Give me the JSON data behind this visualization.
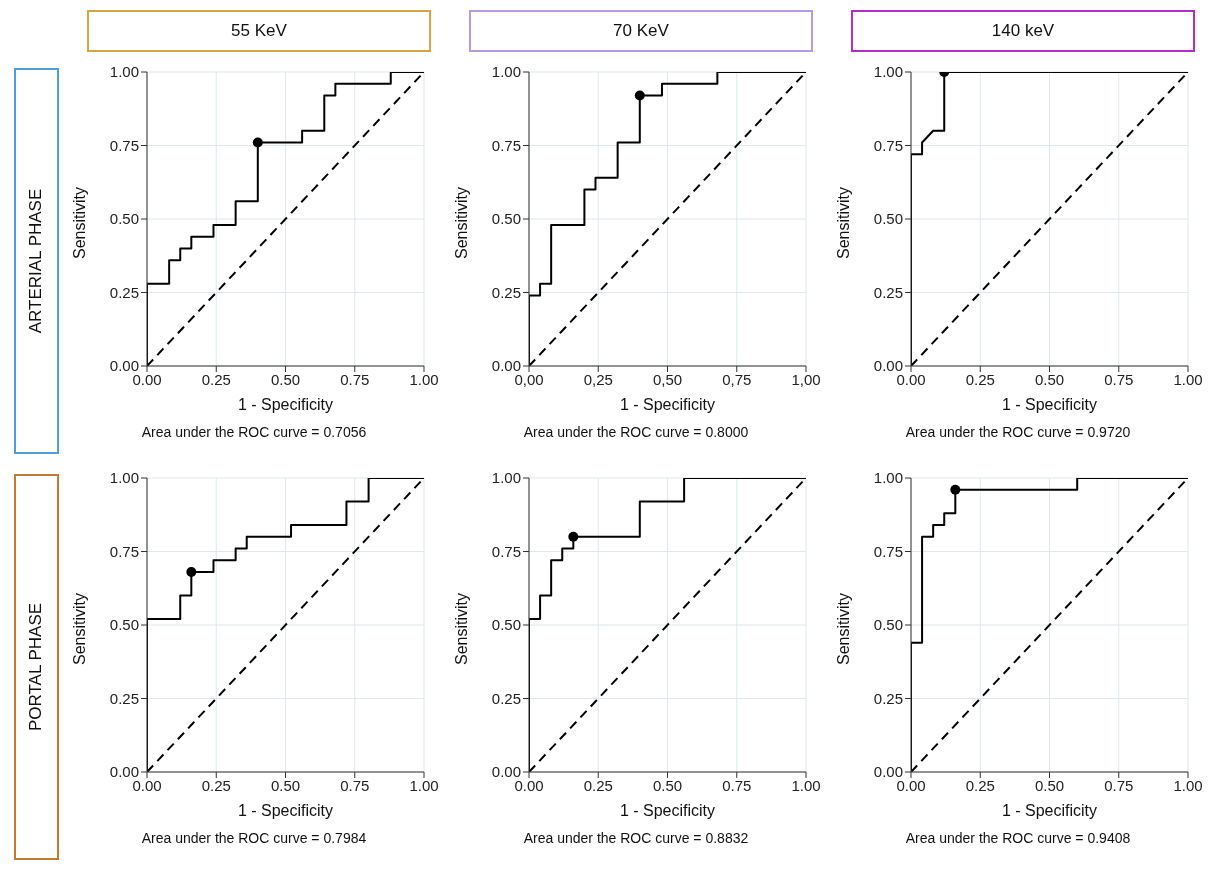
{
  "chart_data": [
    {
      "type": "line",
      "title": "55 KeV",
      "subtitle": "ARTERIAL PHASE",
      "xlabel": "1 - Specificity",
      "ylabel": "Sensitivity",
      "annotations": [
        "Area under the ROC curve = 0.7056"
      ],
      "xlim": [
        0,
        1
      ],
      "ylim": [
        0,
        1
      ],
      "xticks": [
        {
          "value": 0,
          "label": "0.00"
        },
        {
          "value": 0.25,
          "label": "0.25"
        },
        {
          "value": 0.5,
          "label": "0.50"
        },
        {
          "value": 0.75,
          "label": "0.75"
        },
        {
          "value": 1,
          "label": "1.00"
        }
      ],
      "yticks": [
        {
          "value": 0,
          "label": "0.00"
        },
        {
          "value": 0.25,
          "label": "0.25"
        },
        {
          "value": 0.5,
          "label": "0.50"
        },
        {
          "value": 0.75,
          "label": "0.75"
        },
        {
          "value": 1,
          "label": "1.00"
        }
      ],
      "grid": true,
      "series": [
        {
          "color": "#000000",
          "marker": "none",
          "line_style": "solid",
          "x": [
            0,
            0,
            0.08,
            0.08,
            0.12,
            0.12,
            0.16,
            0.16,
            0.24,
            0.24,
            0.32,
            0.32,
            0.4,
            0.4,
            0.56,
            0.56,
            0.64,
            0.64,
            0.68,
            0.68,
            0.88,
            0.88,
            1
          ],
          "values": [
            0,
            0.28,
            0.28,
            0.36,
            0.36,
            0.4,
            0.4,
            0.44,
            0.44,
            0.48,
            0.48,
            0.56,
            0.56,
            0.76,
            0.76,
            0.8,
            0.8,
            0.92,
            0.92,
            0.96,
            0.96,
            1,
            1
          ]
        },
        {
          "type": "line",
          "color": "#000000",
          "marker": "none",
          "line_style": "dashed",
          "x": [
            0,
            1
          ],
          "values": [
            0,
            1
          ]
        },
        {
          "type": "scatter",
          "color": "#000000",
          "marker": "circle",
          "x": [
            0.4
          ],
          "values": [
            0.76
          ]
        }
      ]
    },
    {
      "type": "line",
      "title": "70 KeV",
      "xlabel": "1 - Specificity",
      "ylabel": "Sensitivity",
      "annotations": [
        "Area under the ROC curve = 0.8000"
      ],
      "xlim": [
        0,
        1
      ],
      "ylim": [
        0,
        1
      ],
      "xticks": [
        {
          "value": 0,
          "label": "0,00"
        },
        {
          "value": 0.25,
          "label": "0,25"
        },
        {
          "value": 0.5,
          "label": "0,50"
        },
        {
          "value": 0.75,
          "label": "0,75"
        },
        {
          "value": 1,
          "label": "1,00"
        }
      ],
      "yticks": [
        {
          "value": 0,
          "label": "0.00"
        },
        {
          "value": 0.25,
          "label": "0.25"
        },
        {
          "value": 0.5,
          "label": "0.50"
        },
        {
          "value": 0.75,
          "label": "0.75"
        },
        {
          "value": 1,
          "label": "1.00"
        }
      ],
      "grid": true,
      "series": [
        {
          "color": "#000000",
          "marker": "none",
          "line_style": "solid",
          "x": [
            0,
            0,
            0.04,
            0.04,
            0.08,
            0.08,
            0.2,
            0.2,
            0.24,
            0.24,
            0.32,
            0.32,
            0.4,
            0.4,
            0.48,
            0.48,
            0.68,
            0.68,
            1
          ],
          "values": [
            0,
            0.24,
            0.24,
            0.28,
            0.28,
            0.48,
            0.48,
            0.6,
            0.6,
            0.64,
            0.64,
            0.76,
            0.76,
            0.92,
            0.92,
            0.96,
            0.96,
            1,
            1
          ]
        },
        {
          "type": "line",
          "color": "#000000",
          "marker": "none",
          "line_style": "dashed",
          "x": [
            0,
            1
          ],
          "values": [
            0,
            1
          ]
        },
        {
          "type": "scatter",
          "color": "#000000",
          "marker": "circle",
          "x": [
            0.4
          ],
          "values": [
            0.92
          ]
        }
      ]
    },
    {
      "type": "line",
      "title": "140 keV",
      "xlabel": "1 - Specificity",
      "ylabel": "Sensitivity",
      "annotations": [
        "Area under the ROC curve = 0.9720"
      ],
      "xlim": [
        0,
        1
      ],
      "ylim": [
        0,
        1
      ],
      "xticks": [
        {
          "value": 0,
          "label": "0.00"
        },
        {
          "value": 0.25,
          "label": "0.25"
        },
        {
          "value": 0.5,
          "label": "0.50"
        },
        {
          "value": 0.75,
          "label": "0.75"
        },
        {
          "value": 1,
          "label": "1.00"
        }
      ],
      "yticks": [
        {
          "value": 0,
          "label": "0.00"
        },
        {
          "value": 0.25,
          "label": "0.25"
        },
        {
          "value": 0.5,
          "label": "0.50"
        },
        {
          "value": 0.75,
          "label": "0.75"
        },
        {
          "value": 1,
          "label": "1.00"
        }
      ],
      "grid": true,
      "series": [
        {
          "color": "#000000",
          "marker": "none",
          "line_style": "solid",
          "x": [
            0,
            0,
            0.04,
            0.04,
            0.08,
            0.12,
            0.12,
            1
          ],
          "values": [
            0,
            0.72,
            0.72,
            0.76,
            0.8,
            0.8,
            1,
            1
          ]
        },
        {
          "type": "line",
          "color": "#000000",
          "marker": "none",
          "line_style": "dashed",
          "x": [
            0,
            1
          ],
          "values": [
            0,
            1
          ]
        },
        {
          "type": "scatter",
          "color": "#000000",
          "marker": "circle",
          "x": [
            0.12
          ],
          "values": [
            1
          ]
        }
      ]
    },
    {
      "type": "line",
      "subtitle": "PORTAL PHASE",
      "xlabel": "1 - Specificity",
      "ylabel": "Sensitivity",
      "annotations": [
        "Area under the ROC curve = 0.7984"
      ],
      "xlim": [
        0,
        1
      ],
      "ylim": [
        0,
        1
      ],
      "xticks": [
        {
          "value": 0,
          "label": "0.00"
        },
        {
          "value": 0.25,
          "label": "0.25"
        },
        {
          "value": 0.5,
          "label": "0.50"
        },
        {
          "value": 0.75,
          "label": "0.75"
        },
        {
          "value": 1,
          "label": "1.00"
        }
      ],
      "yticks": [
        {
          "value": 0,
          "label": "0.00"
        },
        {
          "value": 0.25,
          "label": "0.25"
        },
        {
          "value": 0.5,
          "label": "0.50"
        },
        {
          "value": 0.75,
          "label": "0.75"
        },
        {
          "value": 1,
          "label": "1.00"
        }
      ],
      "grid": true,
      "series": [
        {
          "color": "#000000",
          "marker": "none",
          "line_style": "solid",
          "x": [
            0,
            0,
            0.12,
            0.12,
            0.16,
            0.16,
            0.24,
            0.24,
            0.32,
            0.32,
            0.36,
            0.36,
            0.52,
            0.52,
            0.72,
            0.72,
            0.8,
            0.8,
            1
          ],
          "values": [
            0,
            0.52,
            0.52,
            0.6,
            0.6,
            0.68,
            0.68,
            0.72,
            0.72,
            0.76,
            0.76,
            0.8,
            0.8,
            0.84,
            0.84,
            0.92,
            0.92,
            1,
            1
          ]
        },
        {
          "type": "line",
          "color": "#000000",
          "marker": "none",
          "line_style": "dashed",
          "x": [
            0,
            1
          ],
          "values": [
            0,
            1
          ]
        },
        {
          "type": "scatter",
          "color": "#000000",
          "marker": "circle",
          "x": [
            0.16
          ],
          "values": [
            0.68
          ]
        }
      ]
    },
    {
      "type": "line",
      "xlabel": "1 - Specificity",
      "ylabel": "Sensitivity",
      "annotations": [
        "Area under the ROC curve = 0.8832"
      ],
      "xlim": [
        0,
        1
      ],
      "ylim": [
        0,
        1
      ],
      "xticks": [
        {
          "value": 0,
          "label": "0.00"
        },
        {
          "value": 0.25,
          "label": "0.25"
        },
        {
          "value": 0.5,
          "label": "0.50"
        },
        {
          "value": 0.75,
          "label": "0.75"
        },
        {
          "value": 1,
          "label": "1.00"
        }
      ],
      "yticks": [
        {
          "value": 0,
          "label": "0.00"
        },
        {
          "value": 0.25,
          "label": "0.25"
        },
        {
          "value": 0.5,
          "label": "0.50"
        },
        {
          "value": 0.75,
          "label": "0.75"
        },
        {
          "value": 1,
          "label": "1.00"
        }
      ],
      "grid": true,
      "series": [
        {
          "color": "#000000",
          "marker": "none",
          "line_style": "solid",
          "x": [
            0,
            0,
            0.04,
            0.04,
            0.08,
            0.08,
            0.12,
            0.12,
            0.16,
            0.16,
            0.4,
            0.4,
            0.56,
            0.56,
            1
          ],
          "values": [
            0,
            0.52,
            0.52,
            0.6,
            0.6,
            0.72,
            0.72,
            0.76,
            0.76,
            0.8,
            0.8,
            0.92,
            0.92,
            1,
            1
          ]
        },
        {
          "type": "line",
          "color": "#000000",
          "marker": "none",
          "line_style": "dashed",
          "x": [
            0,
            1
          ],
          "values": [
            0,
            1
          ]
        },
        {
          "type": "scatter",
          "color": "#000000",
          "marker": "circle",
          "x": [
            0.16
          ],
          "values": [
            0.8
          ]
        }
      ]
    },
    {
      "type": "line",
      "xlabel": "1 - Specificity",
      "ylabel": "Sensitivity",
      "annotations": [
        "Area under the ROC curve = 0.9408"
      ],
      "xlim": [
        0,
        1
      ],
      "ylim": [
        0,
        1
      ],
      "xticks": [
        {
          "value": 0,
          "label": "0.00"
        },
        {
          "value": 0.25,
          "label": "0.25"
        },
        {
          "value": 0.5,
          "label": "0.50"
        },
        {
          "value": 0.75,
          "label": "0.75"
        },
        {
          "value": 1,
          "label": "1.00"
        }
      ],
      "yticks": [
        {
          "value": 0,
          "label": "0.00"
        },
        {
          "value": 0.25,
          "label": "0.25"
        },
        {
          "value": 0.5,
          "label": "0.50"
        },
        {
          "value": 0.75,
          "label": "0.75"
        },
        {
          "value": 1,
          "label": "1.00"
        }
      ],
      "grid": true,
      "series": [
        {
          "color": "#000000",
          "marker": "none",
          "line_style": "solid",
          "x": [
            0,
            0,
            0.04,
            0.04,
            0.08,
            0.08,
            0.12,
            0.12,
            0.16,
            0.16,
            0.6,
            0.6,
            1
          ],
          "values": [
            0,
            0.44,
            0.44,
            0.8,
            0.8,
            0.84,
            0.84,
            0.88,
            0.88,
            0.96,
            0.96,
            1,
            1
          ]
        },
        {
          "type": "line",
          "color": "#000000",
          "marker": "none",
          "line_style": "dashed",
          "x": [
            0,
            1
          ],
          "values": [
            0,
            1
          ]
        },
        {
          "type": "scatter",
          "color": "#000000",
          "marker": "circle",
          "x": [
            0.16
          ],
          "values": [
            0.96
          ]
        }
      ]
    }
  ]
}
